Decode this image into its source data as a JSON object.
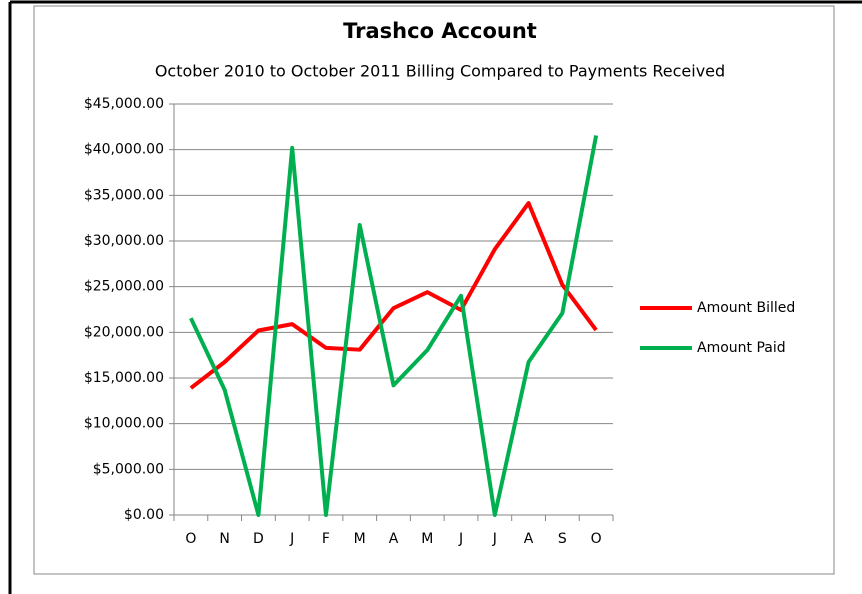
{
  "chart_data": {
    "type": "line",
    "title": "Trashco Account",
    "subtitle": "October 2010 to October 2011 Billing Compared to Payments Received",
    "categories": [
      "O",
      "N",
      "D",
      "J",
      "F",
      "M",
      "A",
      "M",
      "J",
      "J",
      "A",
      "S",
      "O"
    ],
    "series": [
      {
        "name": "Amount Billed",
        "color": "#ff0000",
        "values": [
          13900,
          16750,
          20200,
          20900,
          18300,
          18100,
          22650,
          24400,
          22450,
          29100,
          34150,
          25200,
          20250
        ]
      },
      {
        "name": "Amount Paid",
        "color": "#00b050",
        "values": [
          21550,
          13700,
          0,
          40200,
          0,
          31750,
          14200,
          18050,
          24000,
          0,
          16750,
          22100,
          41550
        ]
      }
    ],
    "ylim": [
      0,
      45000
    ],
    "yticks": [
      {
        "value": 0,
        "label": "$0.00"
      },
      {
        "value": 5000,
        "label": "$5,000.00"
      },
      {
        "value": 10000,
        "label": "$10,000.00"
      },
      {
        "value": 15000,
        "label": "$15,000.00"
      },
      {
        "value": 20000,
        "label": "$20,000.00"
      },
      {
        "value": 25000,
        "label": "$25,000.00"
      },
      {
        "value": 30000,
        "label": "$30,000.00"
      },
      {
        "value": 35000,
        "label": "$35,000.00"
      },
      {
        "value": 40000,
        "label": "$40,000.00"
      },
      {
        "value": 45000,
        "label": "$45,000.00"
      }
    ],
    "grid": true,
    "legend": "right"
  }
}
